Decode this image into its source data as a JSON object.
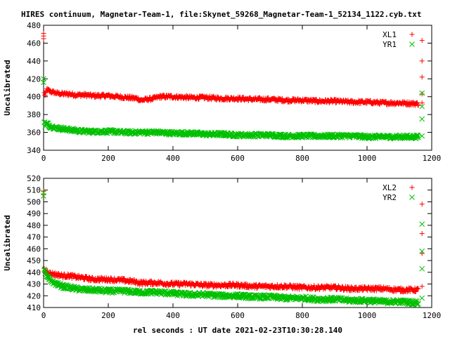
{
  "title": "HIRES continuum, Magnetar-Team-1, file:Skynet_59268_Magnetar-Team-1_52134_1122.cyb.txt",
  "xlabel": "rel seconds : UT date 2021-02-23T10:30:28.140",
  "colors": {
    "red": "#ff0000",
    "green": "#00c000"
  },
  "chart_data": [
    {
      "type": "scatter",
      "ylabel": "Uncalibrated",
      "xlim": [
        0,
        1200
      ],
      "ylim": [
        340,
        480
      ],
      "x_ticks": [
        0,
        200,
        400,
        600,
        800,
        1000,
        1200
      ],
      "y_ticks": [
        340,
        360,
        380,
        400,
        420,
        440,
        460,
        480
      ],
      "legend_position": "top-right",
      "series": [
        {
          "name": "XL1",
          "color": "#ff0000",
          "marker": "plus",
          "points": [
            [
              0,
              471
            ],
            [
              0,
              468
            ],
            [
              0,
              465
            ],
            [
              2,
              404
            ],
            [
              5,
              401
            ],
            [
              10,
              408
            ],
            [
              20,
              406
            ],
            [
              40,
              404
            ],
            [
              60,
              403
            ],
            [
              80,
              403
            ],
            [
              100,
              402
            ],
            [
              130,
              402
            ],
            [
              150,
              401
            ],
            [
              170,
              401
            ],
            [
              200,
              401
            ],
            [
              230,
              400
            ],
            [
              260,
              399
            ],
            [
              290,
              398
            ],
            [
              300,
              396
            ],
            [
              320,
              397
            ],
            [
              340,
              398
            ],
            [
              360,
              400
            ],
            [
              400,
              400
            ],
            [
              450,
              399
            ],
            [
              500,
              399
            ],
            [
              550,
              398
            ],
            [
              600,
              398
            ],
            [
              650,
              397
            ],
            [
              700,
              397
            ],
            [
              750,
              396
            ],
            [
              800,
              396
            ],
            [
              850,
              395
            ],
            [
              900,
              395
            ],
            [
              950,
              394
            ],
            [
              1000,
              394
            ],
            [
              1050,
              393
            ],
            [
              1100,
              393
            ],
            [
              1160,
              392
            ],
            [
              1170,
              463
            ],
            [
              1170,
              440
            ],
            [
              1170,
              422
            ],
            [
              1170,
              403
            ],
            [
              1170,
              393
            ]
          ]
        },
        {
          "name": "YR1",
          "color": "#00c000",
          "marker": "cross",
          "points": [
            [
              0,
              420
            ],
            [
              0,
              416
            ],
            [
              2,
              372
            ],
            [
              5,
              368
            ],
            [
              10,
              370
            ],
            [
              20,
              367
            ],
            [
              40,
              365
            ],
            [
              60,
              364
            ],
            [
              80,
              363
            ],
            [
              100,
              362
            ],
            [
              130,
              361
            ],
            [
              150,
              361
            ],
            [
              200,
              361
            ],
            [
              250,
              360
            ],
            [
              300,
              360
            ],
            [
              350,
              360
            ],
            [
              400,
              359
            ],
            [
              450,
              359
            ],
            [
              500,
              358
            ],
            [
              550,
              358
            ],
            [
              600,
              357
            ],
            [
              650,
              357
            ],
            [
              700,
              357
            ],
            [
              750,
              356
            ],
            [
              800,
              356
            ],
            [
              850,
              356
            ],
            [
              900,
              356
            ],
            [
              950,
              356
            ],
            [
              1000,
              355
            ],
            [
              1050,
              355
            ],
            [
              1100,
              355
            ],
            [
              1160,
              355
            ],
            [
              1170,
              404
            ],
            [
              1170,
              389
            ],
            [
              1170,
              375
            ],
            [
              1170,
              356
            ]
          ]
        }
      ]
    },
    {
      "type": "scatter",
      "ylabel": "Uncalibrated",
      "xlim": [
        0,
        1200
      ],
      "ylim": [
        410,
        520
      ],
      "x_ticks": [
        0,
        200,
        400,
        600,
        800,
        1000,
        1200
      ],
      "y_ticks": [
        410,
        420,
        430,
        440,
        450,
        460,
        470,
        480,
        490,
        500,
        510,
        520
      ],
      "legend_position": "top-right",
      "series": [
        {
          "name": "XL2",
          "color": "#ff0000",
          "marker": "plus",
          "points": [
            [
              0,
              509
            ],
            [
              0,
              506
            ],
            [
              2,
              442
            ],
            [
              5,
              440
            ],
            [
              10,
              441
            ],
            [
              20,
              439
            ],
            [
              40,
              438
            ],
            [
              60,
              437
            ],
            [
              80,
              437
            ],
            [
              100,
              436
            ],
            [
              130,
              435
            ],
            [
              150,
              434
            ],
            [
              200,
              434
            ],
            [
              250,
              433
            ],
            [
              280,
              432
            ],
            [
              300,
              431
            ],
            [
              330,
              431
            ],
            [
              350,
              431
            ],
            [
              400,
              430
            ],
            [
              450,
              430
            ],
            [
              500,
              429
            ],
            [
              550,
              429
            ],
            [
              600,
              429
            ],
            [
              650,
              428
            ],
            [
              700,
              428
            ],
            [
              750,
              428
            ],
            [
              800,
              427
            ],
            [
              850,
              427
            ],
            [
              900,
              427
            ],
            [
              950,
              426
            ],
            [
              1000,
              426
            ],
            [
              1050,
              426
            ],
            [
              1100,
              425
            ],
            [
              1160,
              425
            ],
            [
              1170,
              498
            ],
            [
              1170,
              473
            ],
            [
              1170,
              456
            ],
            [
              1170,
              428
            ]
          ]
        },
        {
          "name": "YR2",
          "color": "#00c000",
          "marker": "cross",
          "points": [
            [
              0,
              508
            ],
            [
              0,
              505
            ],
            [
              2,
              444
            ],
            [
              5,
              440
            ],
            [
              10,
              436
            ],
            [
              20,
              433
            ],
            [
              40,
              430
            ],
            [
              60,
              428
            ],
            [
              80,
              427
            ],
            [
              100,
              426
            ],
            [
              130,
              425
            ],
            [
              150,
              425
            ],
            [
              200,
              424
            ],
            [
              250,
              424
            ],
            [
              300,
              423
            ],
            [
              350,
              423
            ],
            [
              400,
              422
            ],
            [
              450,
              421
            ],
            [
              500,
              421
            ],
            [
              550,
              420
            ],
            [
              600,
              420
            ],
            [
              650,
              419
            ],
            [
              700,
              419
            ],
            [
              750,
              418
            ],
            [
              800,
              418
            ],
            [
              850,
              417
            ],
            [
              900,
              417
            ],
            [
              950,
              416
            ],
            [
              1000,
              416
            ],
            [
              1050,
              415
            ],
            [
              1100,
              415
            ],
            [
              1160,
              414
            ],
            [
              1170,
              481
            ],
            [
              1170,
              458
            ],
            [
              1170,
              443
            ],
            [
              1170,
              418
            ]
          ]
        }
      ]
    }
  ]
}
